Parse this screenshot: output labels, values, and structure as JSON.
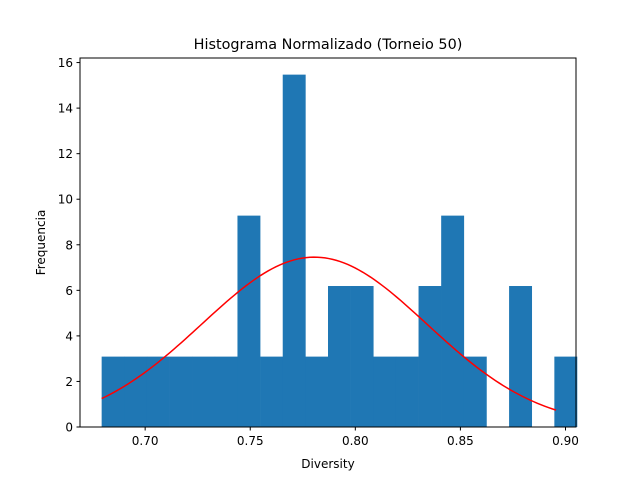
{
  "chart_data": {
    "type": "bar",
    "title": "Histograma Normalizado (Torneio 50)",
    "xlabel": "Diversity",
    "ylabel": "Frequencia",
    "xlim": [
      0.669,
      0.905
    ],
    "ylim": [
      0,
      16.2
    ],
    "xticks": [
      "0.70",
      "0.75",
      "0.80",
      "0.85",
      "0.90"
    ],
    "yticks": [
      "0",
      "2",
      "4",
      "6",
      "8",
      "10",
      "12",
      "14",
      "16"
    ],
    "bins": {
      "start": 0.6793,
      "width": 0.01077,
      "values": [
        3.09,
        3.09,
        3.09,
        3.09,
        3.09,
        3.09,
        9.28,
        3.09,
        15.47,
        3.09,
        6.19,
        6.19,
        3.09,
        3.09,
        6.19,
        9.28,
        3.09,
        0,
        6.19,
        0,
        3.09
      ]
    },
    "fit_curve": {
      "type": "normal_pdf",
      "mean": 0.7805,
      "std": 0.0535,
      "x_range": [
        0.6793,
        0.8955
      ],
      "color": "#ff0000"
    },
    "bar_color": "#1f77b4",
    "grid": false,
    "legend": "none"
  }
}
